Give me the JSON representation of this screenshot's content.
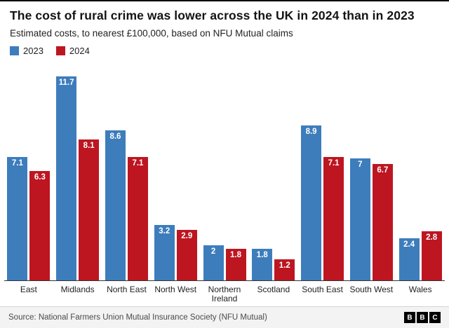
{
  "header": {
    "title": "The cost of rural crime was lower across the UK in 2024 than in 2023",
    "subtitle": "Estimated costs, to nearest £100,000, based on NFU Mutual claims"
  },
  "chart_data": {
    "type": "bar",
    "categories": [
      "East",
      "Midlands",
      "North East",
      "North West",
      "Northern Ireland",
      "Scotland",
      "South East",
      "South West",
      "Wales"
    ],
    "series": [
      {
        "name": "2023",
        "color": "#3d7dbc",
        "values": [
          7.1,
          11.7,
          8.6,
          3.2,
          2,
          1.8,
          8.9,
          7,
          2.4
        ]
      },
      {
        "name": "2024",
        "color": "#bd1621",
        "values": [
          6.3,
          8.1,
          7.1,
          2.9,
          1.8,
          1.2,
          7.1,
          6.7,
          2.8
        ]
      }
    ],
    "title": "The cost of rural crime was lower across the UK in 2024 than in 2023",
    "xlabel": "",
    "ylabel": "",
    "ylim": [
      0,
      12
    ],
    "grid": false,
    "legend_position": "top-left",
    "value_labels": "inside-top"
  },
  "footer": {
    "source": "Source: National Farmers Union Mutual Insurance Society (NFU Mutual)",
    "logo_letters": [
      "B",
      "B",
      "C"
    ]
  }
}
